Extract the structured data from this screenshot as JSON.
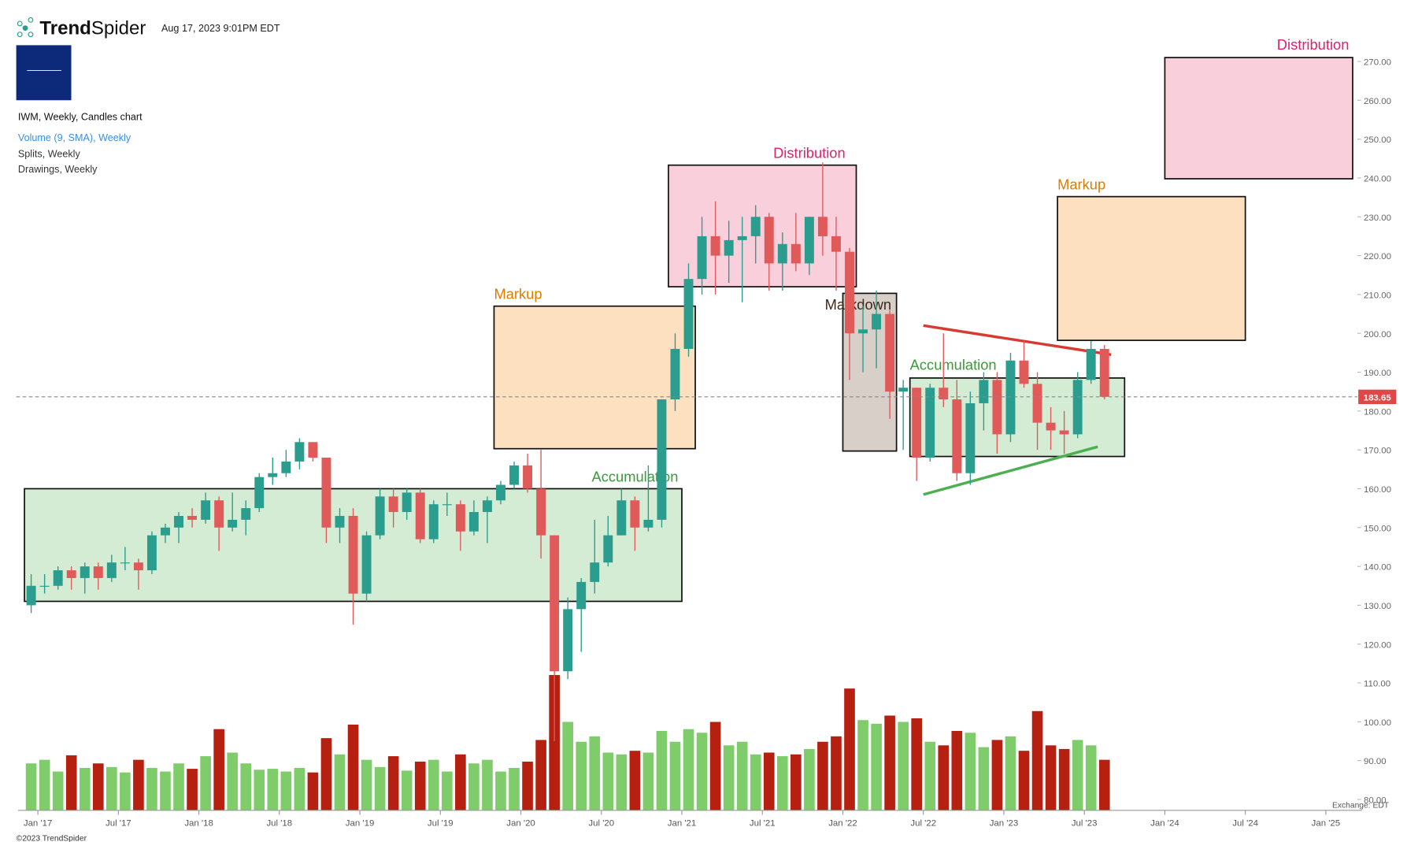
{
  "header": {
    "logo": [
      "Trend",
      "Spider"
    ],
    "timestamp": "Aug 17, 2023 9:01PM EDT"
  },
  "legend": [
    "IWM, Weekly, Candles chart",
    "Volume (9, SMA), Weekly",
    "Splits, Weekly",
    "Drawings, Weekly"
  ],
  "footer": {
    "copyright": "©2023 TrendSpider",
    "exchange": "Exchange: EDT"
  },
  "chart_data": {
    "type": "candlestick",
    "x": [
      "2016-12",
      "2017-01",
      "2017-02",
      "2017-03",
      "2017-04",
      "2017-05",
      "2017-06",
      "2017-07",
      "2017-08",
      "2017-09",
      "2017-10",
      "2017-11",
      "2017-12",
      "2018-01",
      "2018-02",
      "2018-03",
      "2018-04",
      "2018-05",
      "2018-06",
      "2018-07",
      "2018-08",
      "2018-09",
      "2018-10",
      "2018-11",
      "2018-12",
      "2019-01",
      "2019-02",
      "2019-03",
      "2019-04",
      "2019-05",
      "2019-06",
      "2019-07",
      "2019-08",
      "2019-09",
      "2019-10",
      "2019-11",
      "2019-12",
      "2020-01",
      "2020-02",
      "2020-03",
      "2020-04",
      "2020-05",
      "2020-06",
      "2020-07",
      "2020-08",
      "2020-09",
      "2020-10",
      "2020-11",
      "2020-12",
      "2021-01",
      "2021-02",
      "2021-03",
      "2021-04",
      "2021-05",
      "2021-06",
      "2021-07",
      "2021-08",
      "2021-09",
      "2021-10",
      "2021-11",
      "2021-12",
      "2022-01",
      "2022-02",
      "2022-03",
      "2022-04",
      "2022-05",
      "2022-06",
      "2022-07",
      "2022-08",
      "2022-09",
      "2022-10",
      "2022-11",
      "2022-12",
      "2023-01",
      "2023-02",
      "2023-03",
      "2023-04",
      "2023-05",
      "2023-06",
      "2023-07",
      "2023-08"
    ],
    "open": [
      130,
      135,
      135,
      139,
      137,
      140,
      137,
      141,
      141,
      139,
      148,
      150,
      153,
      152,
      157,
      150,
      152,
      155,
      163,
      164,
      167,
      172,
      168,
      150,
      153,
      133,
      148,
      158,
      154,
      159,
      147,
      156,
      156,
      149,
      154,
      157,
      161,
      166,
      160,
      148,
      113,
      129,
      136,
      141,
      148,
      157,
      150,
      152,
      183,
      196,
      214,
      225,
      220,
      224,
      225,
      230,
      218,
      223,
      218,
      230,
      225,
      221,
      200,
      201,
      205,
      185,
      186,
      168,
      186,
      183,
      164,
      182,
      188,
      174,
      193,
      187,
      177,
      175,
      174,
      188,
      196
    ],
    "high": [
      138,
      138,
      140,
      140,
      141,
      141,
      143,
      145,
      142,
      149,
      151,
      154,
      155,
      159,
      158,
      159,
      157,
      164,
      168,
      170,
      173,
      172,
      168,
      155,
      155,
      149,
      160,
      160,
      160,
      160,
      157,
      159,
      157,
      157,
      158,
      162,
      167,
      169,
      170,
      148,
      132,
      137,
      152,
      153,
      160,
      158,
      166,
      183,
      200,
      218,
      230,
      234,
      229,
      230,
      233,
      231,
      226,
      231,
      230,
      244,
      230,
      222,
      207,
      211,
      206,
      188,
      186,
      187,
      200,
      188,
      185,
      190,
      190,
      195,
      198,
      190,
      181,
      180,
      190,
      198,
      197
    ],
    "low": [
      128,
      133,
      134,
      134,
      133,
      134,
      136,
      139,
      134,
      138,
      146,
      146,
      150,
      151,
      144,
      149,
      148,
      154,
      161,
      163,
      165,
      167,
      146,
      146,
      125,
      131,
      147,
      150,
      152,
      146,
      146,
      153,
      144,
      148,
      146,
      156,
      160,
      159,
      142,
      95,
      111,
      118,
      133,
      140,
      148,
      144,
      149,
      150,
      180,
      194,
      210,
      210,
      213,
      208,
      218,
      211,
      211,
      216,
      215,
      220,
      211,
      188,
      190,
      191,
      178,
      170,
      162,
      167,
      181,
      162,
      161,
      175,
      169,
      172,
      186,
      170,
      170,
      169,
      173,
      187,
      183
    ],
    "close": [
      135,
      135,
      139,
      137,
      140,
      137,
      141,
      141,
      139,
      148,
      150,
      153,
      152,
      157,
      150,
      152,
      155,
      163,
      164,
      167,
      172,
      168,
      150,
      153,
      133,
      148,
      158,
      154,
      159,
      147,
      156,
      156,
      149,
      154,
      157,
      161,
      166,
      160,
      148,
      113,
      129,
      136,
      141,
      148,
      157,
      150,
      152,
      183,
      196,
      214,
      225,
      220,
      224,
      225,
      230,
      218,
      223,
      218,
      230,
      225,
      221,
      200,
      201,
      205,
      185,
      186,
      168,
      186,
      183,
      164,
      182,
      188,
      174,
      193,
      187,
      177,
      175,
      174,
      188,
      196,
      183.65
    ],
    "volume": [
      520,
      560,
      430,
      610,
      470,
      520,
      480,
      420,
      560,
      470,
      430,
      520,
      460,
      600,
      900,
      640,
      520,
      450,
      460,
      430,
      470,
      420,
      800,
      620,
      950,
      560,
      480,
      600,
      440,
      540,
      560,
      430,
      620,
      520,
      560,
      430,
      470,
      540,
      780,
      1500,
      980,
      760,
      820,
      640,
      620,
      660,
      640,
      880,
      760,
      900,
      860,
      980,
      720,
      760,
      620,
      640,
      600,
      620,
      680,
      760,
      820,
      1350,
      1000,
      960,
      1050,
      980,
      1020,
      760,
      720,
      880,
      860,
      700,
      780,
      820,
      660,
      1100,
      720,
      680,
      780,
      720,
      560
    ],
    "yticks": [
      {
        "value": 270,
        "label": "270.00"
      },
      {
        "value": 260,
        "label": "260.00"
      },
      {
        "value": 250,
        "label": "250.00"
      },
      {
        "value": 240,
        "label": "240.00"
      },
      {
        "value": 230,
        "label": "230.00"
      },
      {
        "value": 220,
        "label": "220.00"
      },
      {
        "value": 210,
        "label": "210.00"
      },
      {
        "value": 200,
        "label": "200.00"
      },
      {
        "value": 190,
        "label": "190.00"
      },
      {
        "value": 180,
        "label": "180.00"
      },
      {
        "value": 170,
        "label": "170.00"
      },
      {
        "value": 160,
        "label": "160.00"
      },
      {
        "value": 150,
        "label": "150.00"
      },
      {
        "value": 140,
        "label": "140.00"
      },
      {
        "value": 130,
        "label": "130.00"
      },
      {
        "value": 120,
        "label": "120.00"
      },
      {
        "value": 110,
        "label": "110.00"
      },
      {
        "value": 100,
        "label": "100.00"
      },
      {
        "value": 90,
        "label": "90.00"
      },
      {
        "value": 80,
        "label": "80.00"
      }
    ],
    "ylim": [
      80,
      270
    ],
    "xticks": [
      {
        "value": "2017-01",
        "label": "Jan '17"
      },
      {
        "value": "2017-07",
        "label": "Jul '17"
      },
      {
        "value": "2018-01",
        "label": "Jan '18"
      },
      {
        "value": "2018-07",
        "label": "Jul '18"
      },
      {
        "value": "2019-01",
        "label": "Jan '19"
      },
      {
        "value": "2019-07",
        "label": "Jul '19"
      },
      {
        "value": "2020-01",
        "label": "Jan '20"
      },
      {
        "value": "2020-07",
        "label": "Jul '20"
      },
      {
        "value": "2021-01",
        "label": "Jan '21"
      },
      {
        "value": "2021-07",
        "label": "Jul '21"
      },
      {
        "value": "2022-01",
        "label": "Jan '22"
      },
      {
        "value": "2022-07",
        "label": "Jul '22"
      },
      {
        "value": "2023-01",
        "label": "Jan '23"
      },
      {
        "value": "2023-07",
        "label": "Jul '23"
      },
      {
        "value": "2024-01",
        "label": "Jan '24"
      },
      {
        "value": "2024-07",
        "label": "Jul '24"
      },
      {
        "value": "2025-01",
        "label": "Jan '25"
      }
    ],
    "colors": {
      "up": "#2a9d8f",
      "down": "#e05a5a",
      "volume_up": "#7fcc6a",
      "volume_down": "#b52010"
    },
    "zones": [
      {
        "name": "Accumulation",
        "x": [
          "2016-12",
          "2021-01"
        ],
        "y": [
          131,
          160
        ],
        "fill": "#d4ecd4",
        "color": "#3a9a3a"
      },
      {
        "name": "Markup",
        "x": [
          "2019-11",
          "2021-02"
        ],
        "y": [
          170.3,
          207
        ],
        "fill": "#fde0c0",
        "color": "#e07b00"
      },
      {
        "name": "Distribution",
        "x": [
          "2020-12",
          "2022-02"
        ],
        "y": [
          212,
          243.3
        ],
        "fill": "#f9cfdc",
        "color": "#e0206e"
      },
      {
        "name": "Markdown",
        "x": [
          "2022-01",
          "2022-05"
        ],
        "y": [
          169.7,
          210.3
        ],
        "fill": "#d8cfc8",
        "color": "#3a2a1a"
      },
      {
        "name": "Accumulation",
        "x": [
          "2022-06",
          "2023-10"
        ],
        "y": [
          168.3,
          188.5
        ],
        "fill": "#d4ecd4",
        "color": "#3a9a3a"
      },
      {
        "name": "Markup",
        "x": [
          "2023-05",
          "2024-07"
        ],
        "y": [
          198.2,
          235.2
        ],
        "fill": "#fde0c0",
        "color": "#e07b00"
      },
      {
        "name": "Distribution",
        "x": [
          "2024-01",
          "2025-03"
        ],
        "y": [
          239.8,
          271
        ],
        "fill": "#f9cfdc",
        "color": "#e0206e"
      }
    ],
    "trendlines": [
      {
        "x": [
          "2022-07",
          "2023-09"
        ],
        "y": [
          202,
          194.5
        ],
        "color": "#d63a30"
      },
      {
        "x": [
          "2022-07",
          "2023-08"
        ],
        "y": [
          158.5,
          170.8
        ],
        "color": "#4caf50"
      }
    ]
  }
}
